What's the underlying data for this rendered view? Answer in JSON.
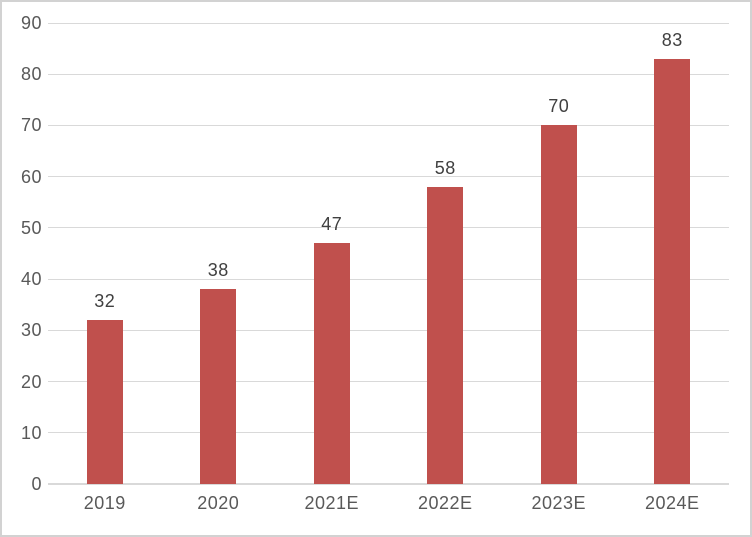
{
  "chart_data": {
    "type": "bar",
    "categories": [
      "2019",
      "2020",
      "2021E",
      "2022E",
      "2023E",
      "2024E"
    ],
    "values": [
      32,
      38,
      47,
      58,
      70,
      83
    ],
    "series": [
      {
        "name": "",
        "values": [
          32,
          38,
          47,
          58,
          70,
          83
        ]
      }
    ],
    "title": "",
    "xlabel": "",
    "ylabel": "",
    "ylim": [
      0,
      90
    ],
    "yticks": [
      0,
      10,
      20,
      30,
      40,
      50,
      60,
      70,
      80,
      90
    ],
    "grid": true,
    "legend": false,
    "data_labels_shown": true,
    "data_labels": [
      "32",
      "38",
      "47",
      "58",
      "70",
      "83"
    ]
  },
  "colors": {
    "bar_fill": "#C0504D",
    "gridline": "#D9D9D9",
    "axis_line": "#D9D9D9",
    "y_tick_text": "#595959",
    "x_tick_text": "#595959",
    "data_label_text": "#404040",
    "frame_border": "#D2D2D2",
    "background": "#FFFFFF"
  }
}
